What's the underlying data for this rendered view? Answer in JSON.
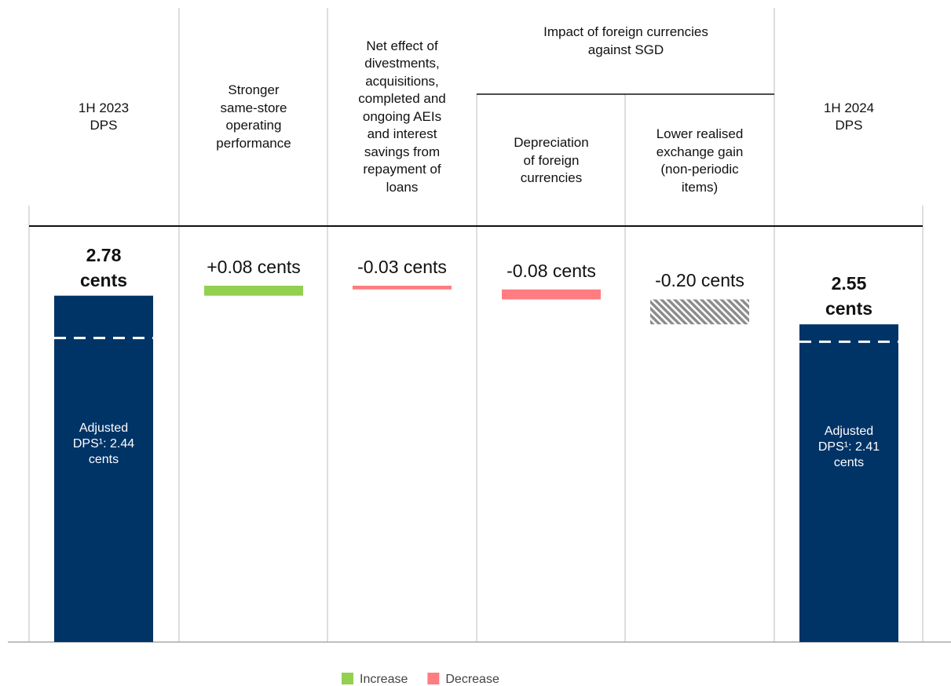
{
  "chart_data": {
    "type": "waterfall",
    "categories": [
      [
        "1H 2023",
        "DPS"
      ],
      [
        "Stronger",
        "same-store",
        "operating",
        "performance"
      ],
      [
        "Net effect of",
        "divestments,",
        "acquisitions,",
        "completed and",
        "ongoing AEIs",
        "and interest",
        "savings from",
        "repayment of",
        "loans"
      ],
      [
        "Depreciation",
        "of foreign",
        "currencies"
      ],
      [
        "Lower realised",
        "exchange gain",
        "(non-periodic",
        "items)"
      ],
      [
        "1H 2024",
        "DPS"
      ]
    ],
    "group_header": {
      "label": [
        "Impact of foreign currencies",
        "against SGD"
      ],
      "span": [
        3,
        4
      ]
    },
    "values": [
      2.78,
      0.08,
      -0.03,
      -0.08,
      -0.2,
      2.55
    ],
    "value_labels": [
      "2.78 cents",
      "+0.08 cents",
      "-0.03 cents",
      "-0.08 cents",
      "-0.20 cents",
      "2.55 cents"
    ],
    "totals": [
      true,
      false,
      false,
      false,
      false,
      true
    ],
    "hatch": [
      false,
      false,
      false,
      false,
      true,
      false
    ],
    "total_color": "#003366",
    "adjusted": [
      {
        "index": 0,
        "value": 2.44,
        "label": "Adjusted DPS¹: 2.44 cents"
      },
      {
        "index": 5,
        "value": 2.41,
        "label": "Adjusted DPS¹: 2.41 cents"
      }
    ],
    "legend": [
      {
        "name": "Increase",
        "color": "#92d050"
      },
      {
        "name": "Decrease",
        "color": "#ff7c80"
      }
    ]
  }
}
